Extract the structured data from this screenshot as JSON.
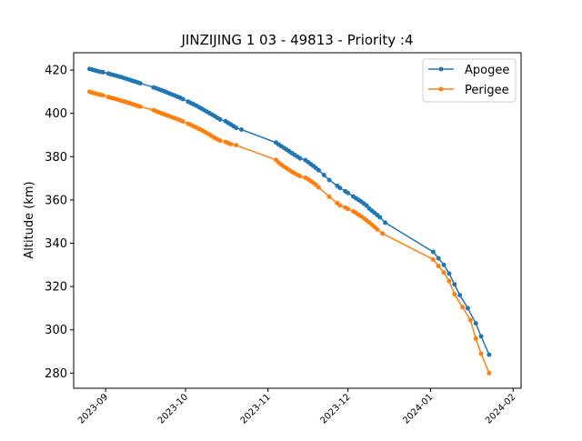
{
  "chart_data": {
    "type": "line",
    "title": "JINZIJING 1 03 - 49813 - Priority :4",
    "xlabel": "",
    "ylabel": "Altitude (km)",
    "xlim": [
      "2023-08-20",
      "2024-02-04"
    ],
    "ylim": [
      273,
      428
    ],
    "x_ticks": [
      "2023-09",
      "2023-10",
      "2023-11",
      "2023-12",
      "2024-01",
      "2024-02"
    ],
    "y_ticks": [
      280,
      300,
      320,
      340,
      360,
      380,
      400,
      420
    ],
    "grid": false,
    "legend_position": "top-right",
    "series": [
      {
        "name": "Apogee",
        "color": "#1f77b4",
        "points": [
          {
            "x": "2023-08-26",
            "y": 420.5
          },
          {
            "x": "2023-08-27",
            "y": 420.2
          },
          {
            "x": "2023-08-28",
            "y": 419.8
          },
          {
            "x": "2023-08-29",
            "y": 419.5
          },
          {
            "x": "2023-08-30",
            "y": 419.2
          },
          {
            "x": "2023-08-31",
            "y": 419.0
          },
          {
            "x": "2023-09-02",
            "y": 418.4
          },
          {
            "x": "2023-09-03",
            "y": 418.0
          },
          {
            "x": "2023-09-04",
            "y": 417.7
          },
          {
            "x": "2023-09-05",
            "y": 417.4
          },
          {
            "x": "2023-09-06",
            "y": 417.0
          },
          {
            "x": "2023-09-07",
            "y": 416.7
          },
          {
            "x": "2023-09-08",
            "y": 416.3
          },
          {
            "x": "2023-09-09",
            "y": 415.9
          },
          {
            "x": "2023-09-10",
            "y": 415.5
          },
          {
            "x": "2023-09-11",
            "y": 415.1
          },
          {
            "x": "2023-09-12",
            "y": 414.7
          },
          {
            "x": "2023-09-13",
            "y": 414.3
          },
          {
            "x": "2023-09-14",
            "y": 413.9
          },
          {
            "x": "2023-09-19",
            "y": 412.0
          },
          {
            "x": "2023-09-20",
            "y": 411.6
          },
          {
            "x": "2023-09-21",
            "y": 411.1
          },
          {
            "x": "2023-09-22",
            "y": 410.7
          },
          {
            "x": "2023-09-23",
            "y": 410.2
          },
          {
            "x": "2023-09-24",
            "y": 409.7
          },
          {
            "x": "2023-09-25",
            "y": 409.2
          },
          {
            "x": "2023-09-26",
            "y": 408.7
          },
          {
            "x": "2023-09-27",
            "y": 408.2
          },
          {
            "x": "2023-09-28",
            "y": 407.7
          },
          {
            "x": "2023-09-29",
            "y": 407.2
          },
          {
            "x": "2023-09-30",
            "y": 406.6
          },
          {
            "x": "2023-10-02",
            "y": 405.4
          },
          {
            "x": "2023-10-03",
            "y": 404.8
          },
          {
            "x": "2023-10-04",
            "y": 404.2
          },
          {
            "x": "2023-10-05",
            "y": 403.6
          },
          {
            "x": "2023-10-06",
            "y": 402.9
          },
          {
            "x": "2023-10-07",
            "y": 402.2
          },
          {
            "x": "2023-10-08",
            "y": 401.5
          },
          {
            "x": "2023-10-09",
            "y": 400.8
          },
          {
            "x": "2023-10-10",
            "y": 400.1
          },
          {
            "x": "2023-10-11",
            "y": 399.4
          },
          {
            "x": "2023-10-12",
            "y": 398.7
          },
          {
            "x": "2023-10-13",
            "y": 397.9
          },
          {
            "x": "2023-10-14",
            "y": 397.2
          },
          {
            "x": "2023-10-16",
            "y": 396.4
          },
          {
            "x": "2023-10-17",
            "y": 395.6
          },
          {
            "x": "2023-10-18",
            "y": 394.9
          },
          {
            "x": "2023-10-19",
            "y": 394.1
          },
          {
            "x": "2023-10-20",
            "y": 393.3
          },
          {
            "x": "2023-10-22",
            "y": 392.5
          },
          {
            "x": "2023-11-04",
            "y": 386.5
          },
          {
            "x": "2023-11-05",
            "y": 385.6
          },
          {
            "x": "2023-11-06",
            "y": 384.8
          },
          {
            "x": "2023-11-07",
            "y": 384.0
          },
          {
            "x": "2023-11-08",
            "y": 383.2
          },
          {
            "x": "2023-11-09",
            "y": 382.4
          },
          {
            "x": "2023-11-10",
            "y": 381.6
          },
          {
            "x": "2023-11-11",
            "y": 380.8
          },
          {
            "x": "2023-11-12",
            "y": 380.0
          },
          {
            "x": "2023-11-13",
            "y": 379.2
          },
          {
            "x": "2023-11-15",
            "y": 378.4
          },
          {
            "x": "2023-11-16",
            "y": 377.5
          },
          {
            "x": "2023-11-17",
            "y": 376.6
          },
          {
            "x": "2023-11-18",
            "y": 375.7
          },
          {
            "x": "2023-11-19",
            "y": 374.7
          },
          {
            "x": "2023-11-20",
            "y": 373.7
          },
          {
            "x": "2023-11-22",
            "y": 371.5
          },
          {
            "x": "2023-11-24",
            "y": 369.2
          },
          {
            "x": "2023-11-27",
            "y": 366.5
          },
          {
            "x": "2023-11-28",
            "y": 365.5
          },
          {
            "x": "2023-11-30",
            "y": 364.0
          },
          {
            "x": "2023-12-01",
            "y": 363.2
          },
          {
            "x": "2023-12-03",
            "y": 361.6
          },
          {
            "x": "2023-12-04",
            "y": 360.8
          },
          {
            "x": "2023-12-05",
            "y": 360.0
          },
          {
            "x": "2023-12-06",
            "y": 359.2
          },
          {
            "x": "2023-12-07",
            "y": 358.3
          },
          {
            "x": "2023-12-08",
            "y": 357.4
          },
          {
            "x": "2023-12-09",
            "y": 356.0
          },
          {
            "x": "2023-12-10",
            "y": 355.0
          },
          {
            "x": "2023-12-11",
            "y": 354.0
          },
          {
            "x": "2023-12-12",
            "y": 353.0
          },
          {
            "x": "2023-12-13",
            "y": 352.0
          },
          {
            "x": "2023-12-15",
            "y": 349.5
          },
          {
            "x": "2024-01-02",
            "y": 336.0
          },
          {
            "x": "2024-01-04",
            "y": 333.0
          },
          {
            "x": "2024-01-06",
            "y": 330.0
          },
          {
            "x": "2024-01-08",
            "y": 326.0
          },
          {
            "x": "2024-01-10",
            "y": 321.0
          },
          {
            "x": "2024-01-12",
            "y": 316.0
          },
          {
            "x": "2024-01-15",
            "y": 310.0
          },
          {
            "x": "2024-01-18",
            "y": 303.0
          },
          {
            "x": "2024-01-20",
            "y": 297.0
          },
          {
            "x": "2024-01-23",
            "y": 288.5
          }
        ]
      },
      {
        "name": "Perigee",
        "color": "#ff7f0e",
        "points": [
          {
            "x": "2023-08-26",
            "y": 410.0
          },
          {
            "x": "2023-08-27",
            "y": 409.6
          },
          {
            "x": "2023-08-28",
            "y": 409.2
          },
          {
            "x": "2023-08-29",
            "y": 408.9
          },
          {
            "x": "2023-08-30",
            "y": 408.6
          },
          {
            "x": "2023-08-31",
            "y": 408.3
          },
          {
            "x": "2023-09-02",
            "y": 407.6
          },
          {
            "x": "2023-09-03",
            "y": 407.2
          },
          {
            "x": "2023-09-04",
            "y": 406.9
          },
          {
            "x": "2023-09-05",
            "y": 406.6
          },
          {
            "x": "2023-09-06",
            "y": 406.2
          },
          {
            "x": "2023-09-07",
            "y": 405.8
          },
          {
            "x": "2023-09-08",
            "y": 405.5
          },
          {
            "x": "2023-09-09",
            "y": 405.1
          },
          {
            "x": "2023-09-10",
            "y": 404.7
          },
          {
            "x": "2023-09-11",
            "y": 404.3
          },
          {
            "x": "2023-09-12",
            "y": 403.9
          },
          {
            "x": "2023-09-13",
            "y": 403.5
          },
          {
            "x": "2023-09-14",
            "y": 403.1
          },
          {
            "x": "2023-09-19",
            "y": 401.5
          },
          {
            "x": "2023-09-20",
            "y": 401.0
          },
          {
            "x": "2023-09-21",
            "y": 400.5
          },
          {
            "x": "2023-09-22",
            "y": 400.0
          },
          {
            "x": "2023-09-23",
            "y": 399.6
          },
          {
            "x": "2023-09-24",
            "y": 399.1
          },
          {
            "x": "2023-09-25",
            "y": 398.7
          },
          {
            "x": "2023-09-26",
            "y": 398.2
          },
          {
            "x": "2023-09-27",
            "y": 397.8
          },
          {
            "x": "2023-09-28",
            "y": 397.3
          },
          {
            "x": "2023-09-29",
            "y": 396.8
          },
          {
            "x": "2023-09-30",
            "y": 396.3
          },
          {
            "x": "2023-10-02",
            "y": 395.2
          },
          {
            "x": "2023-10-03",
            "y": 394.7
          },
          {
            "x": "2023-10-04",
            "y": 394.1
          },
          {
            "x": "2023-10-05",
            "y": 393.5
          },
          {
            "x": "2023-10-06",
            "y": 392.9
          },
          {
            "x": "2023-10-07",
            "y": 392.3
          },
          {
            "x": "2023-10-08",
            "y": 391.6
          },
          {
            "x": "2023-10-09",
            "y": 390.9
          },
          {
            "x": "2023-10-10",
            "y": 390.2
          },
          {
            "x": "2023-10-11",
            "y": 389.4
          },
          {
            "x": "2023-10-12",
            "y": 388.7
          },
          {
            "x": "2023-10-13",
            "y": 388.0
          },
          {
            "x": "2023-10-14",
            "y": 387.4
          },
          {
            "x": "2023-10-16",
            "y": 386.8
          },
          {
            "x": "2023-10-17",
            "y": 386.3
          },
          {
            "x": "2023-10-18",
            "y": 385.8
          },
          {
            "x": "2023-10-20",
            "y": 385.3
          },
          {
            "x": "2023-11-04",
            "y": 378.5
          },
          {
            "x": "2023-11-05",
            "y": 377.3
          },
          {
            "x": "2023-11-06",
            "y": 376.3
          },
          {
            "x": "2023-11-07",
            "y": 375.4
          },
          {
            "x": "2023-11-08",
            "y": 374.6
          },
          {
            "x": "2023-11-09",
            "y": 373.8
          },
          {
            "x": "2023-11-10",
            "y": 373.0
          },
          {
            "x": "2023-11-11",
            "y": 372.3
          },
          {
            "x": "2023-11-12",
            "y": 371.6
          },
          {
            "x": "2023-11-13",
            "y": 371.0
          },
          {
            "x": "2023-11-15",
            "y": 370.3
          },
          {
            "x": "2023-11-16",
            "y": 369.6
          },
          {
            "x": "2023-11-17",
            "y": 368.8
          },
          {
            "x": "2023-11-18",
            "y": 367.9
          },
          {
            "x": "2023-11-19",
            "y": 367.0
          },
          {
            "x": "2023-11-20",
            "y": 365.8
          },
          {
            "x": "2023-11-24",
            "y": 361.5
          },
          {
            "x": "2023-11-27",
            "y": 358.5
          },
          {
            "x": "2023-11-28",
            "y": 357.5
          },
          {
            "x": "2023-11-30",
            "y": 356.5
          },
          {
            "x": "2023-12-01",
            "y": 355.8
          },
          {
            "x": "2023-12-03",
            "y": 354.7
          },
          {
            "x": "2023-12-04",
            "y": 354.0
          },
          {
            "x": "2023-12-05",
            "y": 353.2
          },
          {
            "x": "2023-12-06",
            "y": 352.4
          },
          {
            "x": "2023-12-07",
            "y": 351.5
          },
          {
            "x": "2023-12-08",
            "y": 350.6
          },
          {
            "x": "2023-12-09",
            "y": 349.6
          },
          {
            "x": "2023-12-10",
            "y": 348.6
          },
          {
            "x": "2023-12-11",
            "y": 347.5
          },
          {
            "x": "2023-12-12",
            "y": 346.4
          },
          {
            "x": "2023-12-14",
            "y": 344.5
          },
          {
            "x": "2024-01-02",
            "y": 332.5
          },
          {
            "x": "2024-01-04",
            "y": 329.5
          },
          {
            "x": "2024-01-06",
            "y": 326.5
          },
          {
            "x": "2024-01-08",
            "y": 322.5
          },
          {
            "x": "2024-01-10",
            "y": 316.5
          },
          {
            "x": "2024-01-13",
            "y": 310.5
          },
          {
            "x": "2024-01-16",
            "y": 304.5
          },
          {
            "x": "2024-01-18",
            "y": 296.0
          },
          {
            "x": "2024-01-20",
            "y": 289.0
          },
          {
            "x": "2024-01-23",
            "y": 280.0
          }
        ]
      }
    ]
  }
}
